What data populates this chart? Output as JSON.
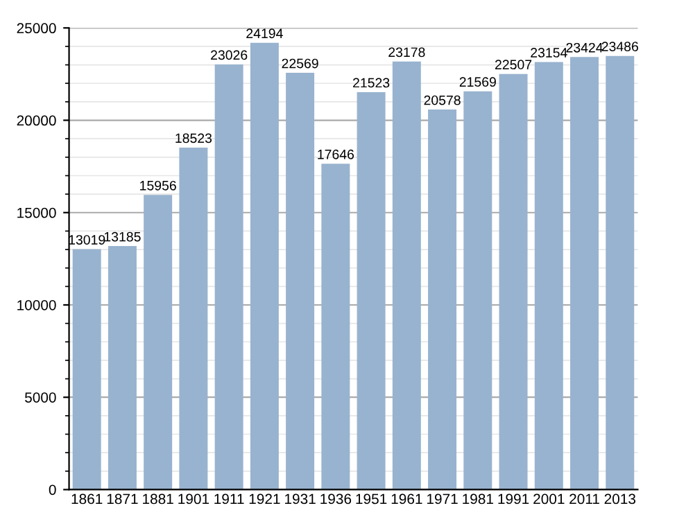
{
  "chart_data": {
    "type": "bar",
    "categories": [
      "1861",
      "1871",
      "1881",
      "1901",
      "1911",
      "1921",
      "1931",
      "1936",
      "1951",
      "1961",
      "1971",
      "1981",
      "1991",
      "2001",
      "2011",
      "2013"
    ],
    "values": [
      13019,
      13185,
      15956,
      18523,
      23026,
      24194,
      22569,
      17646,
      21523,
      23178,
      20578,
      21569,
      22507,
      23154,
      23424,
      23486
    ],
    "color": "#98b3cf",
    "ylim": [
      0,
      25000
    ],
    "yticks": [
      0,
      5000,
      10000,
      15000,
      20000,
      25000
    ],
    "grid": "y",
    "data_labels": true
  }
}
